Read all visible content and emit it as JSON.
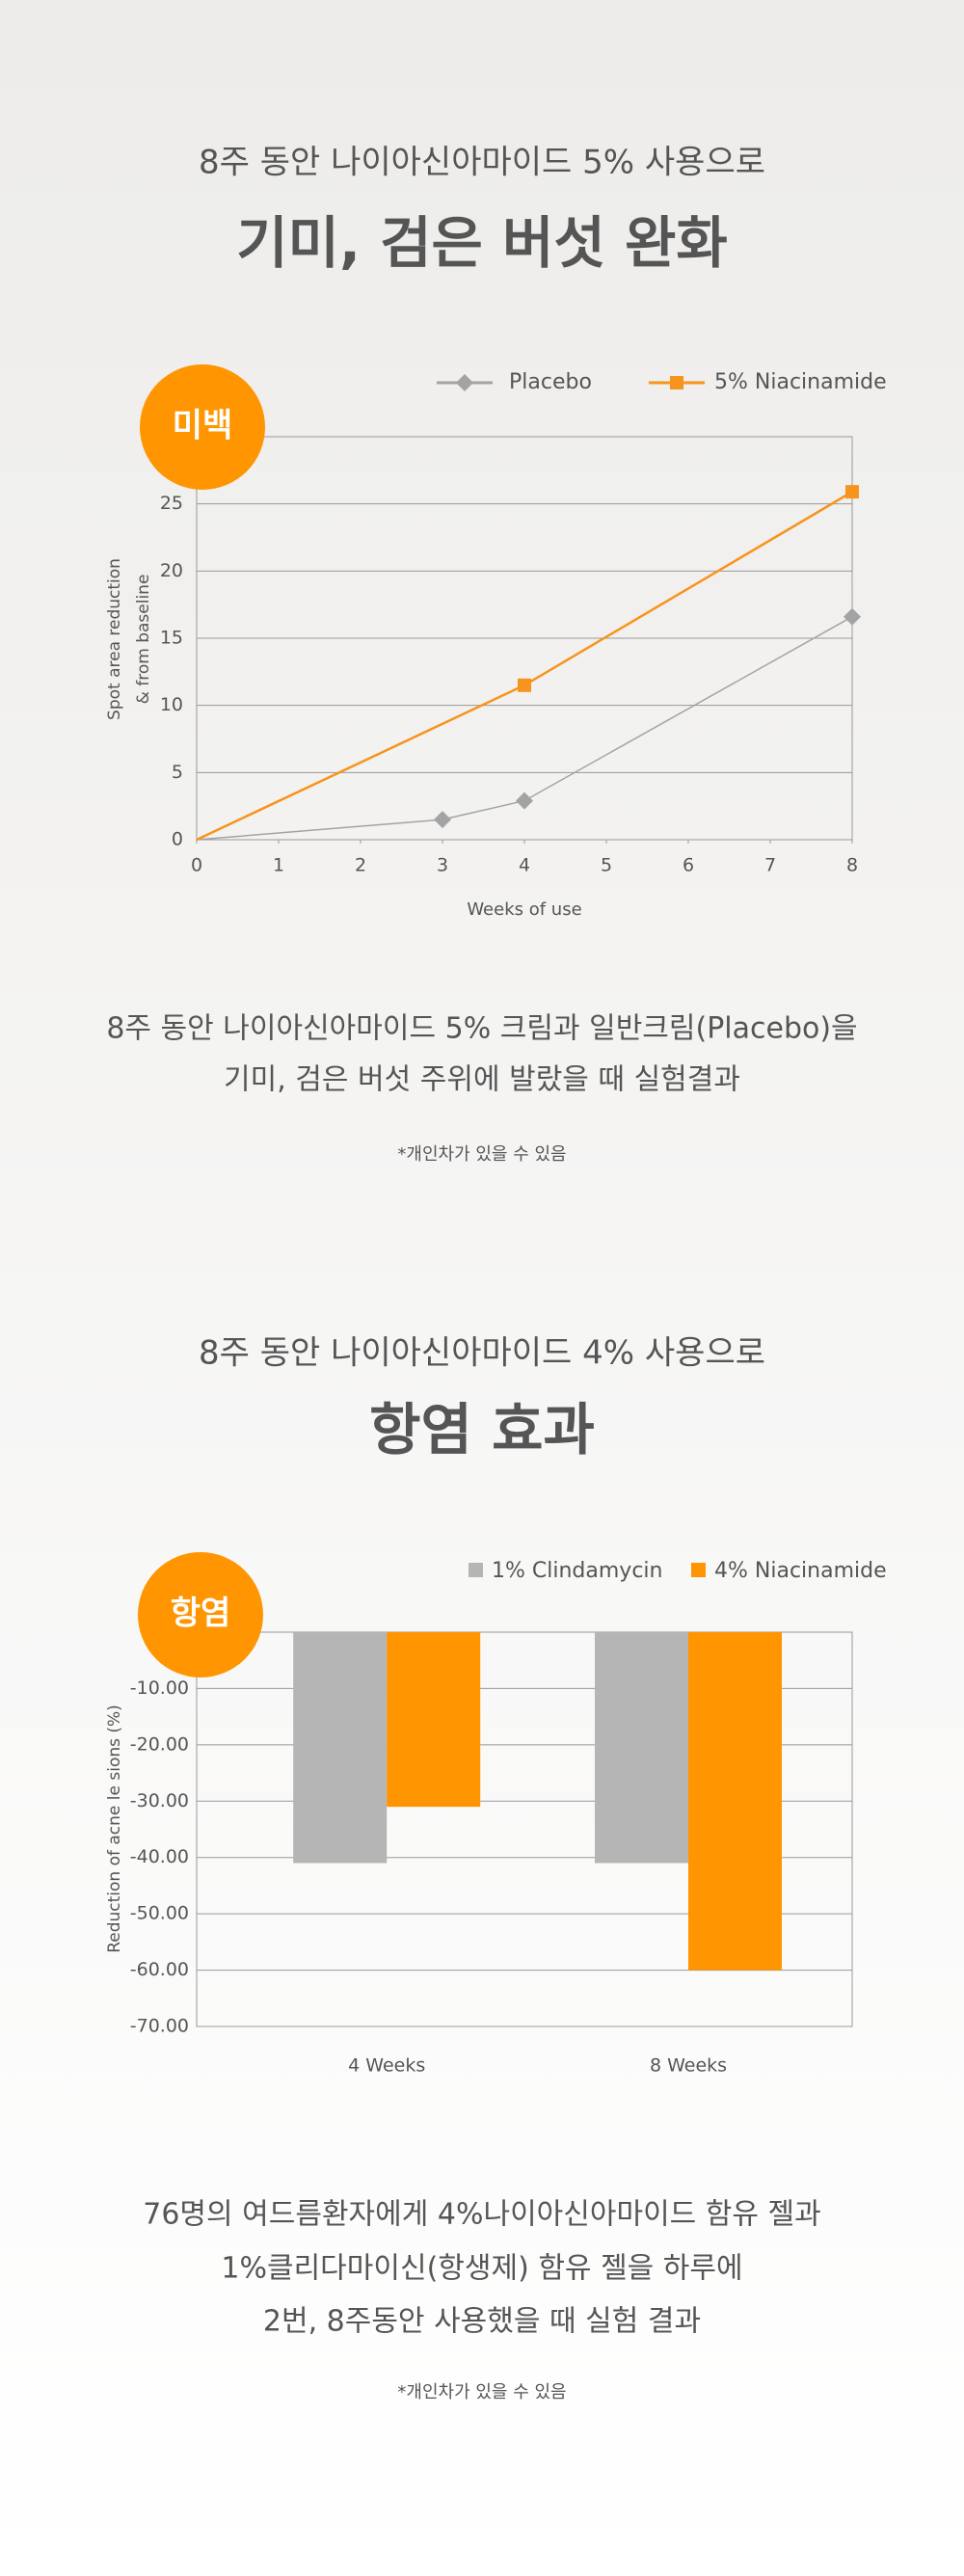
{
  "sections": [
    {
      "subtitle": "8주 동안 나이아신아마이드 5% 사용으로",
      "title": "기미, 검은 버섯 완화",
      "caption": [
        "8주 동안 나이아신아마이드 5% 크림과 일반크림(Placebo)을",
        "기미, 검은 버섯 주위에 발랐을 때 실험결과"
      ],
      "note": "*개인차가 있을 수 있음"
    },
    {
      "subtitle": "8주 동안 나이아신아마이드 4% 사용으로",
      "title": "항염 효과",
      "caption": [
        "76명의 여드름환자에게 4%나이아신아마이드 함유 젤과",
        "1%클리다마이신(항생제) 함유 젤을 하루에",
        "2번, 8주동안 사용했을 때 실험 결과"
      ],
      "note": "*개인차가 있을 수 있음"
    }
  ],
  "chart_data": [
    {
      "type": "line",
      "badge": "미백",
      "xlabel": "Weeks of use",
      "ylabel": [
        "Spot area reduction",
        "& from baseline"
      ],
      "xlim": [
        0,
        8
      ],
      "xticks": [
        0,
        1,
        2,
        3,
        4,
        5,
        6,
        7,
        8
      ],
      "ylim": [
        0,
        30
      ],
      "yticks": [
        0,
        5,
        10,
        15,
        20,
        25
      ],
      "grid": true,
      "series": [
        {
          "name": "Placebo",
          "color": "#a3a3a3",
          "marker": "diamond",
          "x": [
            0,
            3,
            4,
            8
          ],
          "values": [
            0,
            1.5,
            2.9,
            16.6
          ]
        },
        {
          "name": "5% Niacinamide",
          "color": "#f7941d",
          "marker": "square",
          "x": [
            0,
            4,
            8
          ],
          "values": [
            0,
            11.5,
            25.9
          ]
        }
      ]
    },
    {
      "type": "bar",
      "badge": "항염",
      "ylabel": "Reduction of acne le sions (%)",
      "categories": [
        "4 Weeks",
        "8 Weeks"
      ],
      "ylim": [
        -70,
        0
      ],
      "yticks": [
        {
          "value": -10,
          "label": "-10.00"
        },
        {
          "value": -20,
          "label": "-20.00"
        },
        {
          "value": -30,
          "label": "-30.00"
        },
        {
          "value": -40,
          "label": "-40.00"
        },
        {
          "value": -50,
          "label": "-50.00"
        },
        {
          "value": -60,
          "label": "-60.00"
        },
        {
          "value": -70,
          "label": "-70.00"
        }
      ],
      "grid": true,
      "series": [
        {
          "name": "1% Clindamycin",
          "color": "#b5b5b5",
          "values": [
            -41,
            -41
          ]
        },
        {
          "name": "4% Niacinamide",
          "color": "#ff9500",
          "values": [
            -31,
            -60
          ]
        }
      ]
    }
  ]
}
